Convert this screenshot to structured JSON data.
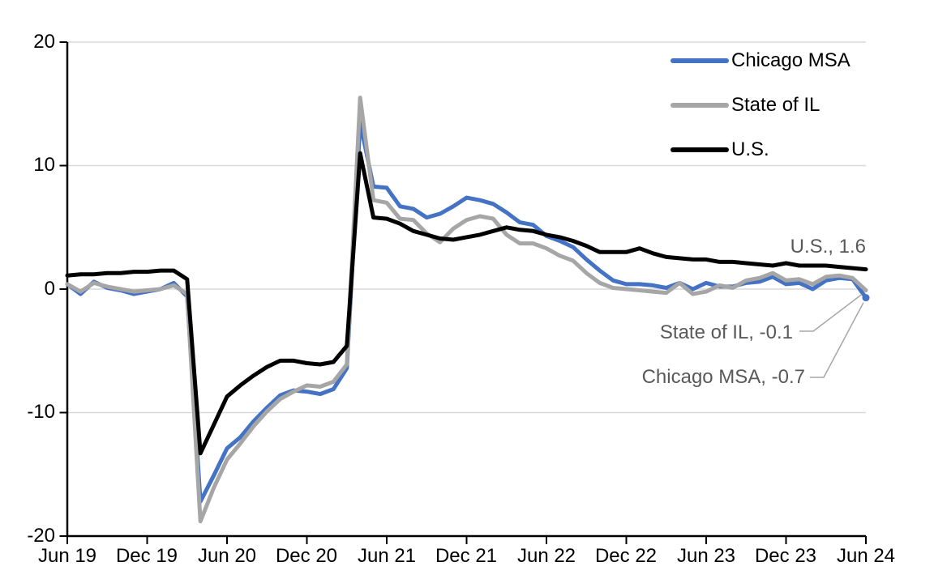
{
  "chart_data": {
    "type": "line",
    "title": "",
    "x_start": "Jun 2019",
    "x_end": "Jun 2024",
    "frequency": "monthly",
    "x_tick_labels": [
      "Jun 19",
      "Dec 19",
      "Jun 20",
      "Dec 20",
      "Jun 21",
      "Dec 21",
      "Jun 22",
      "Dec 22",
      "Jun 23",
      "Dec 23",
      "Jun 24"
    ],
    "x_tick_positions": [
      0,
      6,
      12,
      18,
      24,
      30,
      36,
      42,
      48,
      54,
      60
    ],
    "y_tick_labels": [
      "20",
      "10",
      "0",
      "-10",
      "-20"
    ],
    "y_ticks": [
      20,
      10,
      0,
      -10,
      -20
    ],
    "ylim": [
      -20,
      20
    ],
    "grid": true,
    "legend_position": "top-right",
    "series": [
      {
        "name": "Chicago MSA",
        "color": "#4472C4",
        "values": [
          0.4,
          -0.4,
          0.6,
          0.1,
          -0.1,
          -0.4,
          -0.2,
          0.0,
          0.5,
          -0.6,
          -17.2,
          -15.1,
          -12.9,
          -12.0,
          -10.7,
          -9.6,
          -8.6,
          -8.2,
          -8.3,
          -8.5,
          -8.1,
          -6.4,
          13.5,
          8.3,
          8.2,
          6.7,
          6.5,
          5.8,
          6.1,
          6.7,
          7.4,
          7.2,
          6.9,
          6.2,
          5.4,
          5.2,
          4.3,
          3.9,
          3.4,
          2.4,
          1.5,
          0.7,
          0.4,
          0.4,
          0.3,
          0.1,
          0.5,
          0.0,
          0.5,
          0.2,
          0.2,
          0.5,
          0.6,
          1.0,
          0.4,
          0.5,
          0.0,
          0.7,
          0.9,
          0.8,
          -0.7
        ]
      },
      {
        "name": "State of IL",
        "color": "#A6A6A6",
        "values": [
          0.4,
          -0.2,
          0.5,
          0.2,
          0.0,
          -0.2,
          -0.1,
          0.0,
          0.3,
          -0.4,
          -18.8,
          -16.1,
          -13.8,
          -12.5,
          -11.1,
          -9.9,
          -8.9,
          -8.3,
          -7.8,
          -7.9,
          -7.5,
          -6.1,
          15.5,
          7.2,
          7.0,
          5.7,
          5.6,
          4.5,
          3.8,
          4.9,
          5.6,
          5.9,
          5.7,
          4.4,
          3.7,
          3.7,
          3.3,
          2.7,
          2.3,
          1.3,
          0.5,
          0.1,
          0.0,
          -0.1,
          -0.2,
          -0.3,
          0.5,
          -0.4,
          -0.2,
          0.3,
          0.1,
          0.7,
          0.9,
          1.3,
          0.7,
          0.8,
          0.4,
          1.0,
          1.1,
          0.9,
          -0.1
        ]
      },
      {
        "name": "U.S.",
        "color": "#000000",
        "values": [
          1.1,
          1.2,
          1.2,
          1.3,
          1.3,
          1.4,
          1.4,
          1.5,
          1.5,
          0.8,
          -13.3,
          -11.0,
          -8.7,
          -7.8,
          -7.0,
          -6.3,
          -5.8,
          -5.8,
          -6.0,
          -6.1,
          -5.9,
          -4.6,
          11.0,
          5.8,
          5.7,
          5.3,
          4.7,
          4.4,
          4.1,
          4.0,
          4.2,
          4.4,
          4.7,
          5.0,
          4.8,
          4.7,
          4.4,
          4.2,
          3.9,
          3.5,
          3.0,
          3.0,
          3.0,
          3.3,
          2.9,
          2.6,
          2.5,
          2.4,
          2.4,
          2.2,
          2.2,
          2.1,
          2.0,
          1.9,
          2.1,
          1.9,
          1.9,
          1.9,
          1.8,
          1.7,
          1.6
        ]
      }
    ],
    "annotations": [
      {
        "text": "U.S., 1.6",
        "series": "U.S.",
        "value": 1.6
      },
      {
        "text": "State of IL, -0.1",
        "series": "State of IL",
        "value": -0.1
      },
      {
        "text": "Chicago MSA, -0.7",
        "series": "Chicago MSA",
        "value": -0.7
      }
    ],
    "colors": {
      "chicago_msa": "#4472C4",
      "state_of_il": "#A6A6A6",
      "us": "#000000",
      "gridline": "#D9D9D9",
      "axis": "#000000",
      "annotation_text": "#595959",
      "leader_line": "#A6A6A6",
      "background": "#ffffff"
    }
  }
}
